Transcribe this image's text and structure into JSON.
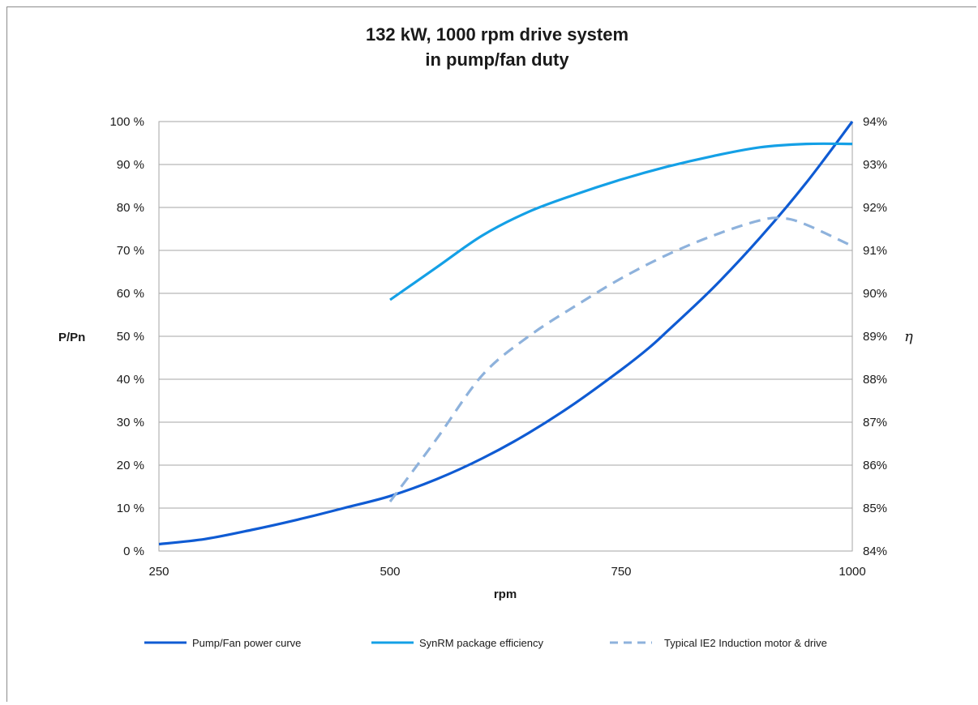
{
  "chart_data": {
    "type": "line",
    "title": "132 kW, 1000 rpm drive system",
    "subtitle": "in pump/fan duty",
    "xlabel": "rpm",
    "ylabel": "P/Pn",
    "y2label": "η",
    "xlim": [
      250,
      1000
    ],
    "xticks": [
      "250",
      "500",
      "750",
      "1000"
    ],
    "ylim": [
      0,
      100
    ],
    "yticks": [
      "0 %",
      "10 %",
      "20 %",
      "30 %",
      "40 %",
      "50 %",
      "60 %",
      "70 %",
      "80 %",
      "90 %",
      "100 %"
    ],
    "y2lim": [
      84,
      94
    ],
    "y2ticks": [
      "84%",
      "85%",
      "86%",
      "87%",
      "88%",
      "89%",
      "90%",
      "91%",
      "92%",
      "93%",
      "94%"
    ],
    "grid": true,
    "legend_position": "bottom",
    "series": [
      {
        "name": "Pump/Fan power curve",
        "axis": "left",
        "color": "#0f5bd3",
        "dash": false,
        "x": [
          250,
          300,
          350,
          400,
          450,
          500,
          550,
          600,
          650,
          700,
          750,
          780,
          800,
          850,
          900,
          950,
          1000
        ],
        "y": [
          1.6,
          2.8,
          4.9,
          7.3,
          10,
          12.8,
          16.7,
          21.6,
          27.5,
          34.4,
          42.2,
          47.3,
          51.2,
          61.4,
          72.9,
          85.7,
          100
        ]
      },
      {
        "name": "SynRM package efficiency",
        "axis": "right",
        "color": "#14a0e6",
        "dash": false,
        "x": [
          500,
          550,
          600,
          650,
          700,
          750,
          800,
          850,
          900,
          950,
          1000
        ],
        "y": [
          89.85,
          90.6,
          91.35,
          91.9,
          92.3,
          92.65,
          92.95,
          93.2,
          93.4,
          93.48,
          93.48
        ]
      },
      {
        "name": "Typical IE2 Induction motor & drive",
        "axis": "right",
        "color": "#8eb2dc",
        "dash": true,
        "x": [
          500,
          550,
          600,
          650,
          700,
          750,
          800,
          850,
          900,
          925,
          950,
          1000
        ],
        "y": [
          85.15,
          86.6,
          88.1,
          89.0,
          89.7,
          90.35,
          90.9,
          91.35,
          91.7,
          91.75,
          91.6,
          91.1
        ]
      }
    ]
  }
}
